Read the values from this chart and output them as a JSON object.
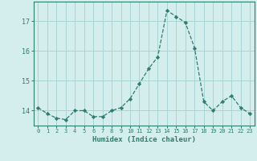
{
  "x": [
    0,
    1,
    2,
    3,
    4,
    5,
    6,
    7,
    8,
    9,
    10,
    11,
    12,
    13,
    14,
    15,
    16,
    17,
    18,
    19,
    20,
    21,
    22,
    23
  ],
  "y": [
    14.1,
    13.9,
    13.75,
    13.7,
    14.0,
    14.0,
    13.8,
    13.8,
    14.0,
    14.1,
    14.4,
    14.9,
    15.4,
    15.8,
    17.35,
    17.15,
    16.95,
    16.1,
    14.3,
    14.0,
    14.3,
    14.5,
    14.1,
    13.9
  ],
  "line_color": "#2e7d6e",
  "marker": "D",
  "marker_size": 2.2,
  "bg_color": "#d4eeee",
  "grid_color": "#aad4d4",
  "xlabel": "Humidex (Indice chaleur)",
  "yticks": [
    14,
    15,
    16,
    17
  ],
  "ylim": [
    13.5,
    17.65
  ],
  "xlim": [
    -0.5,
    23.5
  ],
  "tick_color": "#2e7d6e",
  "xlabel_color": "#2e7d6e"
}
